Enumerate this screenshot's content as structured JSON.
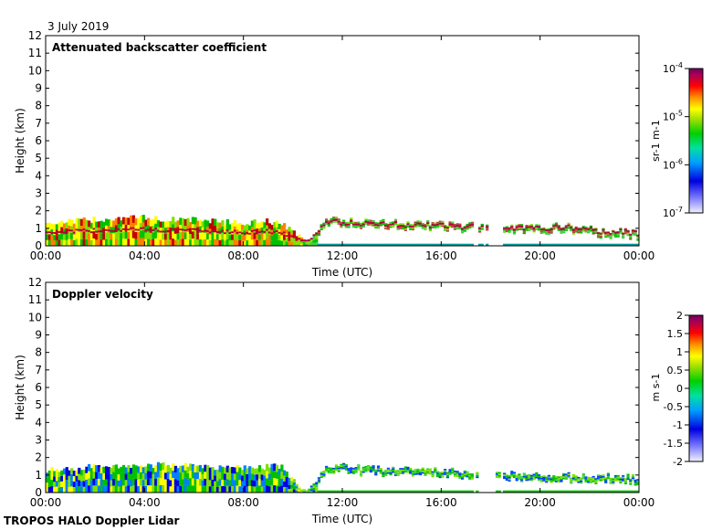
{
  "header": {
    "date": "3 July 2019"
  },
  "footer": {
    "caption": "TROPOS HALO Doppler Lidar"
  },
  "chart_data": [
    {
      "type": "heatmap",
      "title": "Attenuated backscatter coefficient",
      "xlabel": "Time (UTC)",
      "ylabel": "Height (km)",
      "x_ticks": [
        "00:00",
        "04:00",
        "08:00",
        "12:00",
        "16:00",
        "20:00",
        "00:00"
      ],
      "xlim_hours": [
        0,
        24
      ],
      "y_ticks": [
        0,
        1,
        2,
        3,
        4,
        5,
        6,
        7,
        8,
        9,
        10,
        11,
        12
      ],
      "ylim_km": [
        0,
        12
      ],
      "colorbar": {
        "unit": "sr-1 m-1",
        "scale": "log",
        "range": [
          1e-07,
          0.0001
        ],
        "ticks": [
          {
            "base": "10",
            "exp": "-4",
            "value": 0.0001
          },
          {
            "base": "10",
            "exp": "-5",
            "value": 1e-05
          },
          {
            "base": "10",
            "exp": "-6",
            "value": 1e-06
          },
          {
            "base": "10",
            "exp": "-7",
            "value": 1e-07
          }
        ]
      },
      "layer_top_km": [
        [
          0.0,
          1.3
        ],
        [
          1.0,
          1.4
        ],
        [
          2.0,
          1.5
        ],
        [
          3.0,
          1.6
        ],
        [
          4.0,
          1.6
        ],
        [
          5.0,
          1.5
        ],
        [
          6.0,
          1.5
        ],
        [
          7.0,
          1.4
        ],
        [
          8.0,
          1.3
        ],
        [
          9.0,
          1.4
        ],
        [
          10.0,
          1.0
        ],
        [
          10.5,
          0.1
        ],
        [
          11.3,
          1.5
        ],
        [
          12.0,
          1.5
        ],
        [
          13.0,
          1.4
        ],
        [
          14.0,
          1.4
        ],
        [
          15.0,
          1.3
        ],
        [
          16.0,
          1.3
        ],
        [
          17.0,
          1.2
        ],
        [
          17.5,
          1.2
        ],
        [
          18.0,
          1.1
        ],
        [
          19.0,
          1.1
        ],
        [
          20.0,
          1.1
        ],
        [
          21.0,
          1.2
        ],
        [
          22.0,
          1.0
        ],
        [
          22.5,
          0.9
        ],
        [
          23.0,
          0.9
        ],
        [
          24.0,
          0.8
        ]
      ]
    },
    {
      "type": "heatmap",
      "title": "Doppler velocity",
      "xlabel": "Time (UTC)",
      "ylabel": "Height (km)",
      "x_ticks": [
        "00:00",
        "04:00",
        "08:00",
        "12:00",
        "16:00",
        "20:00",
        "00:00"
      ],
      "xlim_hours": [
        0,
        24
      ],
      "y_ticks": [
        0,
        1,
        2,
        3,
        4,
        5,
        6,
        7,
        8,
        9,
        10,
        11,
        12
      ],
      "ylim_km": [
        0,
        12
      ],
      "colorbar": {
        "unit": "m s-1",
        "scale": "linear",
        "range": [
          -2,
          2
        ],
        "ticks": [
          "2",
          "1.5",
          "1",
          "0.5",
          "0",
          "-0.5",
          "-1",
          "-1.5",
          "-2"
        ]
      },
      "layer_top_km": [
        [
          0.0,
          1.3
        ],
        [
          2.0,
          1.5
        ],
        [
          4.0,
          1.6
        ],
        [
          6.0,
          1.5
        ],
        [
          8.0,
          1.4
        ],
        [
          9.5,
          1.5
        ],
        [
          10.5,
          0.1
        ],
        [
          11.5,
          1.6
        ],
        [
          13.0,
          1.4
        ],
        [
          16.0,
          1.3
        ],
        [
          17.0,
          1.2
        ],
        [
          18.5,
          1.1
        ],
        [
          20.0,
          1.0
        ],
        [
          22.0,
          1.0
        ],
        [
          24.0,
          0.9
        ]
      ]
    }
  ]
}
